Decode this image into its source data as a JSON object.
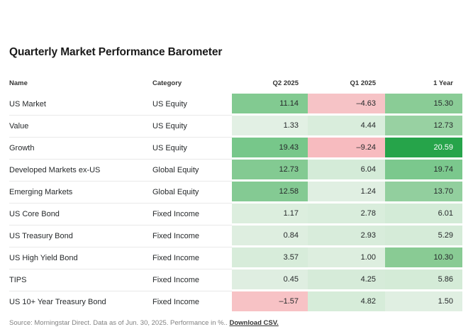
{
  "title": "Quarterly Market Performance Barometer",
  "table": {
    "columns": [
      "Name",
      "Category",
      "Q2 2025",
      "Q1 2025",
      "1 Year"
    ],
    "rows": [
      {
        "name": "US Market",
        "category": "US Equity",
        "values": [
          {
            "text": "11.14",
            "bg": "#82ca91",
            "fg": "#26292b"
          },
          {
            "text": "–4.63",
            "bg": "#f6c3c6",
            "fg": "#26292b"
          },
          {
            "text": "15.30",
            "bg": "#8acc96",
            "fg": "#26292b"
          }
        ]
      },
      {
        "name": "Value",
        "category": "US Equity",
        "values": [
          {
            "text": "1.33",
            "bg": "#e2f0e4",
            "fg": "#26292b"
          },
          {
            "text": "4.44",
            "bg": "#d9eddc",
            "fg": "#26292b"
          },
          {
            "text": "12.73",
            "bg": "#98d1a2",
            "fg": "#26292b"
          }
        ]
      },
      {
        "name": "Growth",
        "category": "US Equity",
        "values": [
          {
            "text": "19.43",
            "bg": "#77c78a",
            "fg": "#26292b"
          },
          {
            "text": "–9.24",
            "bg": "#f7bbbf",
            "fg": "#26292b"
          },
          {
            "text": "20.59",
            "bg": "#26a44a",
            "fg": "#ffffff"
          }
        ]
      },
      {
        "name": "Developed Markets ex-US",
        "category": "Global Equity",
        "values": [
          {
            "text": "12.73",
            "bg": "#83ca92",
            "fg": "#26292b"
          },
          {
            "text": "6.04",
            "bg": "#d4ebd8",
            "fg": "#26292b"
          },
          {
            "text": "19.74",
            "bg": "#7bc88d",
            "fg": "#26292b"
          }
        ]
      },
      {
        "name": "Emerging Markets",
        "category": "Global Equity",
        "values": [
          {
            "text": "12.58",
            "bg": "#84ca93",
            "fg": "#26292b"
          },
          {
            "text": "1.24",
            "bg": "#e0efe2",
            "fg": "#26292b"
          },
          {
            "text": "13.70",
            "bg": "#92cf9e",
            "fg": "#26292b"
          }
        ]
      },
      {
        "name": "US Core Bond",
        "category": "Fixed Income",
        "values": [
          {
            "text": "1.17",
            "bg": "#dceede",
            "fg": "#26292b"
          },
          {
            "text": "2.78",
            "bg": "#d9eddc",
            "fg": "#26292b"
          },
          {
            "text": "6.01",
            "bg": "#d3ebd7",
            "fg": "#26292b"
          }
        ]
      },
      {
        "name": "US Treasury Bond",
        "category": "Fixed Income",
        "values": [
          {
            "text": "0.84",
            "bg": "#deeee0",
            "fg": "#26292b"
          },
          {
            "text": "2.93",
            "bg": "#d8ecdb",
            "fg": "#26292b"
          },
          {
            "text": "5.29",
            "bg": "#d5ebd8",
            "fg": "#26292b"
          }
        ]
      },
      {
        "name": "US High Yield Bond",
        "category": "Fixed Income",
        "values": [
          {
            "text": "3.57",
            "bg": "#d7ecda",
            "fg": "#26292b"
          },
          {
            "text": "1.00",
            "bg": "#ddeedf",
            "fg": "#26292b"
          },
          {
            "text": "10.30",
            "bg": "#89cb94",
            "fg": "#26292b"
          }
        ]
      },
      {
        "name": "TIPS",
        "category": "Fixed Income",
        "values": [
          {
            "text": "0.45",
            "bg": "#dfeee1",
            "fg": "#26292b"
          },
          {
            "text": "4.25",
            "bg": "#d6ebd9",
            "fg": "#26292b"
          },
          {
            "text": "5.86",
            "bg": "#d4ebd7",
            "fg": "#26292b"
          }
        ]
      },
      {
        "name": "US 10+ Year Treasury Bond",
        "category": "Fixed Income",
        "values": [
          {
            "text": "–1.57",
            "bg": "#f7c2c5",
            "fg": "#26292b"
          },
          {
            "text": "4.82",
            "bg": "#d6ecd9",
            "fg": "#26292b"
          },
          {
            "text": "1.50",
            "bg": "#e0efe2",
            "fg": "#26292b"
          }
        ]
      }
    ]
  },
  "footer": {
    "source_text": "Source: Morningstar Direct. Data as of Jun. 30, 2025. Performance in %..",
    "link_text": "Download CSV."
  },
  "colors": {
    "max_positive": "#26a44a",
    "mid_positive": "#82ca91",
    "low_positive": "#dceede",
    "negative": "#f6c3c6",
    "row_border": "#e9e9e9"
  },
  "chart_data": {
    "type": "heatmap",
    "title": "Quarterly Market Performance Barometer",
    "columns": [
      "Q2 2025",
      "Q1 2025",
      "1 Year"
    ],
    "rows": [
      {
        "name": "US Market",
        "category": "US Equity",
        "values": [
          11.14,
          -4.63,
          15.3
        ]
      },
      {
        "name": "Value",
        "category": "US Equity",
        "values": [
          1.33,
          4.44,
          12.73
        ]
      },
      {
        "name": "Growth",
        "category": "US Equity",
        "values": [
          19.43,
          -9.24,
          20.59
        ]
      },
      {
        "name": "Developed Markets ex-US",
        "category": "Global Equity",
        "values": [
          12.73,
          6.04,
          19.74
        ]
      },
      {
        "name": "Emerging Markets",
        "category": "Global Equity",
        "values": [
          12.58,
          1.24,
          13.7
        ]
      },
      {
        "name": "US Core Bond",
        "category": "Fixed Income",
        "values": [
          1.17,
          2.78,
          6.01
        ]
      },
      {
        "name": "US Treasury Bond",
        "category": "Fixed Income",
        "values": [
          0.84,
          2.93,
          5.29
        ]
      },
      {
        "name": "US High Yield Bond",
        "category": "Fixed Income",
        "values": [
          3.57,
          1.0,
          10.3
        ]
      },
      {
        "name": "TIPS",
        "category": "Fixed Income",
        "values": [
          0.45,
          4.25,
          5.86
        ]
      },
      {
        "name": "US 10+ Year Treasury Bond",
        "category": "Fixed Income",
        "values": [
          -1.57,
          4.82,
          1.5
        ]
      }
    ],
    "legend": "cell background: green intensity scales with positive value, pink with negative value",
    "units": "percent"
  }
}
